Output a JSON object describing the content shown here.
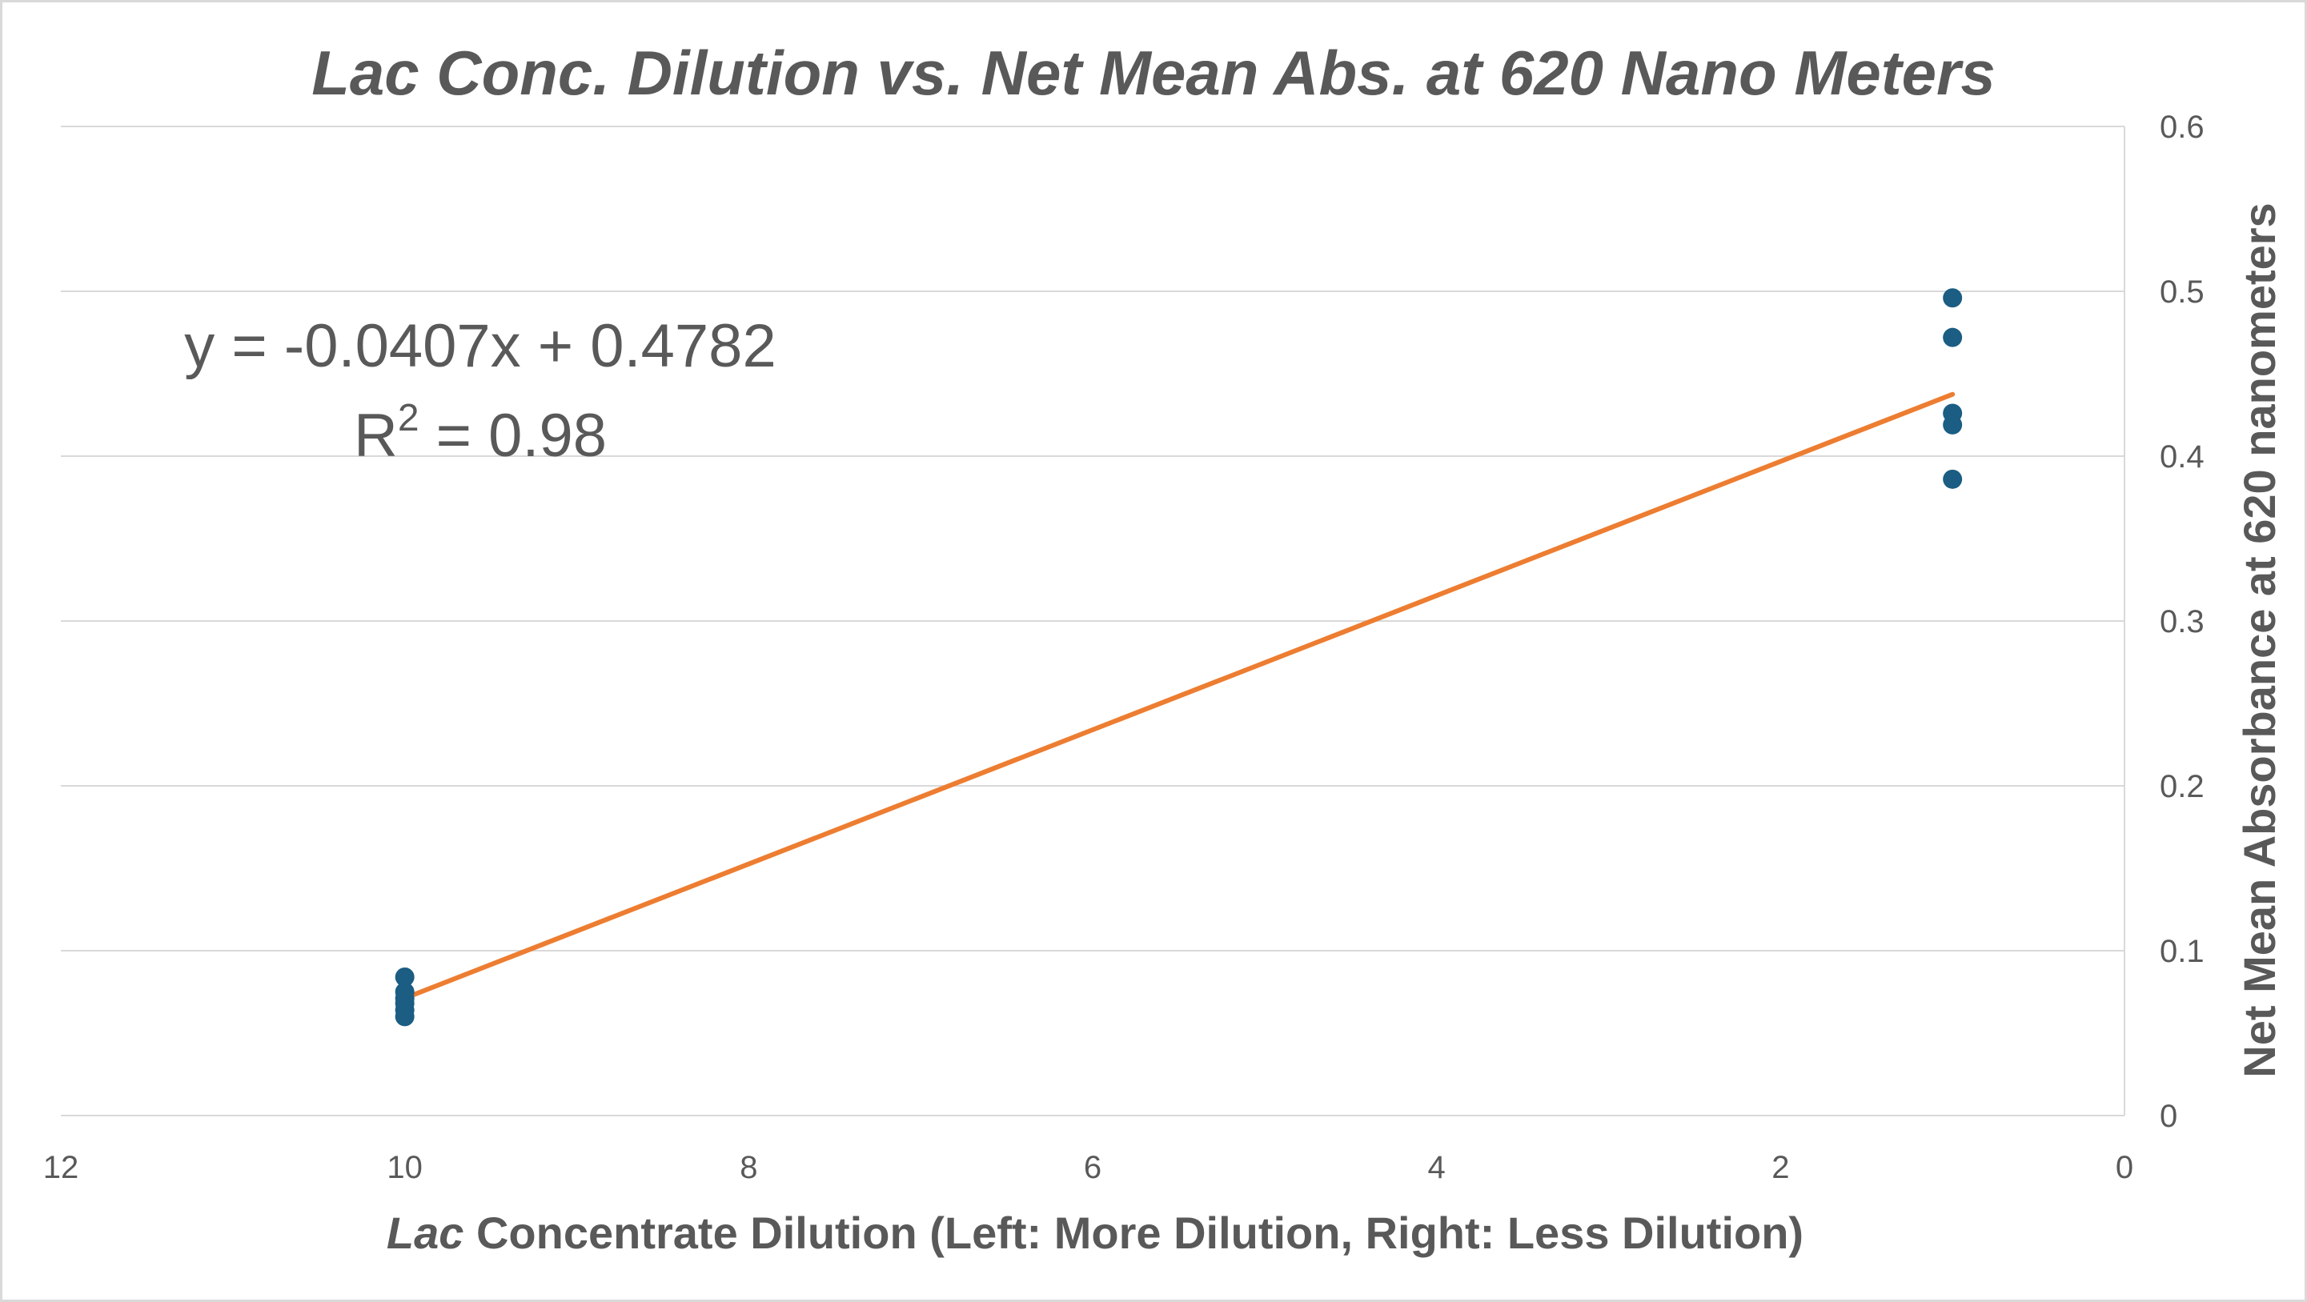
{
  "chart_data": {
    "type": "scatter",
    "title": "Lac Conc. Dilution vs. Net Mean Abs. at 620 Nano Meters",
    "xlabel_italic": "Lac",
    "xlabel_rest": " Concentrate Dilution (Left: More Dilution, Right: Less Dilution)",
    "ylabel": "Net Mean Absorbance at 620 nanometers",
    "xlim": [
      0,
      12
    ],
    "x_reversed": true,
    "ylim": [
      0,
      0.6
    ],
    "y_axis_position": "right",
    "grid": true,
    "x_ticks": [
      "12",
      "10",
      "8",
      "6",
      "4",
      "2",
      "0"
    ],
    "x_tick_values": [
      12,
      10,
      8,
      6,
      4,
      2,
      0
    ],
    "y_ticks": [
      "0",
      "0.1",
      "0.2",
      "0.3",
      "0.4",
      "0.5",
      "0.6"
    ],
    "y_tick_values": [
      0,
      0.1,
      0.2,
      0.3,
      0.4,
      0.5,
      0.6
    ],
    "series": [
      {
        "points": [
          {
            "x": 10,
            "y": 0.084
          },
          {
            "x": 10,
            "y": 0.075
          },
          {
            "x": 10,
            "y": 0.071
          },
          {
            "x": 10,
            "y": 0.068
          },
          {
            "x": 10,
            "y": 0.064
          },
          {
            "x": 10,
            "y": 0.06
          },
          {
            "x": 1,
            "y": 0.496
          },
          {
            "x": 1,
            "y": 0.472
          },
          {
            "x": 1,
            "y": 0.426
          },
          {
            "x": 1,
            "y": 0.419
          },
          {
            "x": 1,
            "y": 0.386
          }
        ]
      }
    ],
    "trendline": {
      "type": "linear",
      "slope": -0.0407,
      "intercept": 0.4782,
      "x_range": [
        1,
        10
      ],
      "equation": "y = -0.0407x + 0.4782",
      "r2_prefix": "R",
      "r2_exponent": "2",
      "r2_suffix": " = 0.98"
    }
  },
  "colors": {
    "marker": "#1b5d83",
    "trendline": "#ed7d31",
    "gridline": "#d9d9d9",
    "text": "#595959"
  }
}
